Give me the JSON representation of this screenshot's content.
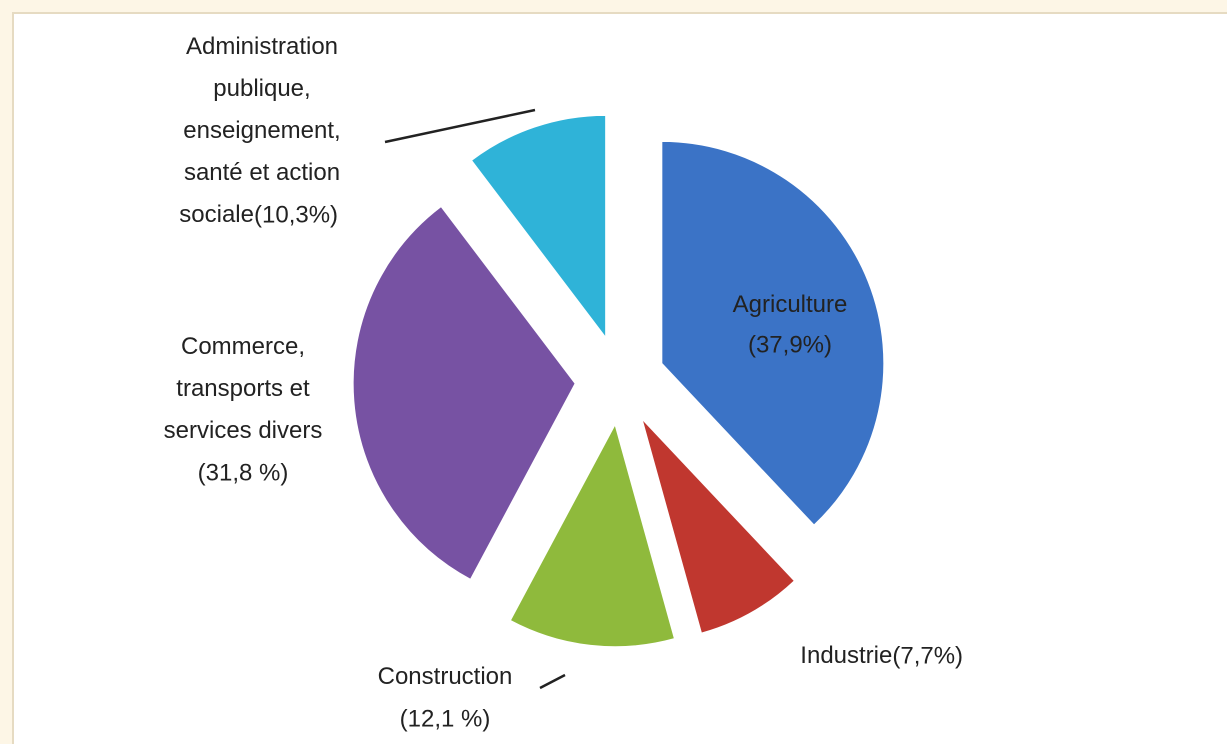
{
  "chart_data": {
    "type": "pie",
    "categories": [
      "Agriculture",
      "Industrie",
      "Construction",
      "Commerce, transports et services divers",
      "Administration publique, enseignement, santé et action sociale"
    ],
    "values": [
      37.9,
      7.7,
      12.1,
      31.8,
      10.3
    ],
    "value_labels": [
      "(37,9%)",
      "(7,7%)",
      "(12,1 %)",
      "(31,8 %)",
      "(10,3%)"
    ],
    "colors": [
      "#3b73c6",
      "#c0372f",
      "#8fba3c",
      "#7752a3",
      "#2fb3d8"
    ]
  }
}
